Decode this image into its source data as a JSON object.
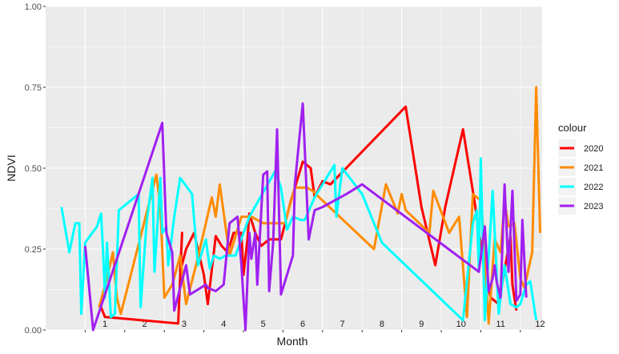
{
  "chart_data": {
    "type": "line",
    "xlabel": "Month",
    "ylabel": "NDVI",
    "ylim": [
      0,
      1
    ],
    "y_ticks": [
      "0.00",
      "0.25",
      "0.50",
      "0.75",
      "1.00"
    ],
    "y_tick_values": [
      0,
      0.25,
      0.5,
      0.75,
      1.0
    ],
    "categories": [
      "1",
      "2",
      "3",
      "4",
      "5",
      "6",
      "7",
      "8",
      "9",
      "10",
      "11",
      "12"
    ],
    "grid": true,
    "legend": {
      "title": "colour",
      "position": "right"
    },
    "series": [
      {
        "name": "2020",
        "color": "#ff0000",
        "points": [
          [
            1.4,
            0.07
          ],
          [
            1.5,
            0.04
          ],
          [
            3.35,
            0.02
          ],
          [
            3.45,
            0.3
          ],
          [
            3.4,
            0.18
          ],
          [
            3.55,
            0.25
          ],
          [
            3.75,
            0.3
          ],
          [
            4.0,
            0.17
          ],
          [
            4.1,
            0.08
          ],
          [
            4.3,
            0.29
          ],
          [
            4.45,
            0.26
          ],
          [
            4.6,
            0.24
          ],
          [
            4.75,
            0.3
          ],
          [
            4.95,
            0.3
          ],
          [
            5.0,
            0.17
          ],
          [
            5.1,
            0.28
          ],
          [
            5.15,
            0.36
          ],
          [
            5.3,
            0.3
          ],
          [
            5.45,
            0.26
          ],
          [
            5.65,
            0.28
          ],
          [
            5.95,
            0.28
          ],
          [
            6.2,
            0.4
          ],
          [
            6.5,
            0.52
          ],
          [
            6.7,
            0.5
          ],
          [
            6.8,
            0.41
          ],
          [
            7.0,
            0.46
          ],
          [
            7.2,
            0.45
          ],
          [
            9.1,
            0.69
          ],
          [
            9.5,
            0.38
          ],
          [
            9.85,
            0.2
          ],
          [
            10.1,
            0.38
          ],
          [
            10.55,
            0.62
          ],
          [
            10.85,
            0.39
          ],
          [
            11.1,
            0.18
          ],
          [
            11.25,
            0.1
          ],
          [
            11.45,
            0.08
          ],
          [
            11.75,
            0.29
          ],
          [
            11.8,
            0.14
          ],
          [
            11.9,
            0.06
          ]
        ]
      },
      {
        "name": "2021",
        "color": "#ff8c00",
        "points": [
          [
            1.35,
            0.07
          ],
          [
            1.55,
            0.16
          ],
          [
            1.7,
            0.24
          ],
          [
            1.8,
            0.1
          ],
          [
            1.9,
            0.05
          ],
          [
            2.8,
            0.48
          ],
          [
            2.9,
            0.38
          ],
          [
            3.0,
            0.1
          ],
          [
            3.2,
            0.14
          ],
          [
            3.4,
            0.23
          ],
          [
            3.55,
            0.08
          ],
          [
            3.8,
            0.2
          ],
          [
            4.05,
            0.33
          ],
          [
            4.2,
            0.41
          ],
          [
            4.3,
            0.35
          ],
          [
            4.4,
            0.45
          ],
          [
            4.65,
            0.23
          ],
          [
            4.95,
            0.35
          ],
          [
            5.1,
            0.35
          ],
          [
            5.2,
            0.35
          ],
          [
            5.5,
            0.33
          ],
          [
            6.0,
            0.33
          ],
          [
            6.05,
            0.33
          ],
          [
            6.3,
            0.44
          ],
          [
            6.6,
            0.44
          ],
          [
            6.75,
            0.43
          ],
          [
            7.0,
            0.4
          ],
          [
            8.3,
            0.25
          ],
          [
            8.6,
            0.45
          ],
          [
            8.9,
            0.36
          ],
          [
            9.0,
            0.42
          ],
          [
            9.1,
            0.37
          ],
          [
            9.7,
            0.3
          ],
          [
            9.8,
            0.43
          ],
          [
            10.2,
            0.3
          ],
          [
            10.45,
            0.35
          ],
          [
            10.65,
            0.04
          ],
          [
            10.8,
            0.42
          ],
          [
            11.0,
            0.4
          ],
          [
            11.05,
            0.33
          ],
          [
            11.2,
            0.02
          ],
          [
            11.35,
            0.28
          ],
          [
            11.5,
            0.24
          ],
          [
            11.6,
            0.4
          ],
          [
            11.7,
            0.32
          ],
          [
            11.85,
            0.33
          ],
          [
            12.0,
            0.16
          ],
          [
            12.1,
            0.13
          ],
          [
            12.3,
            0.24
          ],
          [
            12.4,
            0.75
          ],
          [
            12.5,
            0.3
          ]
        ]
      },
      {
        "name": "2022",
        "color": "#00ffff",
        "points": [
          [
            0.4,
            0.38
          ],
          [
            0.6,
            0.24
          ],
          [
            0.75,
            0.33
          ],
          [
            0.85,
            0.33
          ],
          [
            0.9,
            0.05
          ],
          [
            1.0,
            0.27
          ],
          [
            1.3,
            0.32
          ],
          [
            1.4,
            0.36
          ],
          [
            1.45,
            0.25
          ],
          [
            1.5,
            0.1
          ],
          [
            1.55,
            0.27
          ],
          [
            1.65,
            0.04
          ],
          [
            1.75,
            0.05
          ],
          [
            1.85,
            0.37
          ],
          [
            2.35,
            0.42
          ],
          [
            2.4,
            0.07
          ],
          [
            2.55,
            0.33
          ],
          [
            2.7,
            0.47
          ],
          [
            2.75,
            0.18
          ],
          [
            2.9,
            0.47
          ],
          [
            2.95,
            0.3
          ],
          [
            3.05,
            0.32
          ],
          [
            3.1,
            0.2
          ],
          [
            3.25,
            0.35
          ],
          [
            3.4,
            0.47
          ],
          [
            3.7,
            0.42
          ],
          [
            3.85,
            0.2
          ],
          [
            4.05,
            0.28
          ],
          [
            4.15,
            0.19
          ],
          [
            4.25,
            0.23
          ],
          [
            4.4,
            0.22
          ],
          [
            4.55,
            0.23
          ],
          [
            4.8,
            0.23
          ],
          [
            5.15,
            0.35
          ],
          [
            5.8,
            0.49
          ],
          [
            5.95,
            0.44
          ],
          [
            6.1,
            0.31
          ],
          [
            6.25,
            0.35
          ],
          [
            6.45,
            0.34
          ],
          [
            6.55,
            0.34
          ],
          [
            6.8,
            0.41
          ],
          [
            7.3,
            0.51
          ],
          [
            7.35,
            0.35
          ],
          [
            7.5,
            0.5
          ],
          [
            8.0,
            0.42
          ],
          [
            8.5,
            0.27
          ],
          [
            10.55,
            0.03
          ],
          [
            10.8,
            0.33
          ],
          [
            10.9,
            0.37
          ],
          [
            10.95,
            0.18
          ],
          [
            11.0,
            0.53
          ],
          [
            11.1,
            0.03
          ],
          [
            11.3,
            0.43
          ],
          [
            11.45,
            0.05
          ],
          [
            11.6,
            0.2
          ],
          [
            11.75,
            0.08
          ],
          [
            11.9,
            0.07
          ],
          [
            12.0,
            0.08
          ],
          [
            12.15,
            0.14
          ],
          [
            12.25,
            0.15
          ],
          [
            12.4,
            0.03
          ]
        ]
      },
      {
        "name": "2023",
        "color": "#a020f0",
        "points": [
          [
            1.0,
            0.26
          ],
          [
            1.2,
            0.0
          ],
          [
            2.95,
            0.64
          ],
          [
            3.05,
            0.3
          ],
          [
            3.2,
            0.24
          ],
          [
            3.25,
            0.06
          ],
          [
            3.55,
            0.2
          ],
          [
            3.65,
            0.11
          ],
          [
            4.05,
            0.14
          ],
          [
            4.1,
            0.13
          ],
          [
            4.3,
            0.12
          ],
          [
            4.5,
            0.14
          ],
          [
            4.65,
            0.33
          ],
          [
            4.85,
            0.35
          ],
          [
            4.95,
            0.2
          ],
          [
            5.05,
            0.0
          ],
          [
            5.15,
            0.3
          ],
          [
            5.2,
            0.22
          ],
          [
            5.3,
            0.3
          ],
          [
            5.35,
            0.14
          ],
          [
            5.5,
            0.48
          ],
          [
            5.6,
            0.49
          ],
          [
            5.65,
            0.12
          ],
          [
            5.75,
            0.27
          ],
          [
            5.85,
            0.62
          ],
          [
            5.95,
            0.11
          ],
          [
            6.25,
            0.23
          ],
          [
            6.3,
            0.45
          ],
          [
            6.5,
            0.7
          ],
          [
            6.65,
            0.28
          ],
          [
            6.8,
            0.37
          ],
          [
            7.0,
            0.38
          ],
          [
            7.6,
            0.42
          ],
          [
            8.0,
            0.45
          ],
          [
            10.95,
            0.18
          ],
          [
            11.1,
            0.32
          ],
          [
            11.2,
            0.12
          ],
          [
            11.3,
            0.16
          ],
          [
            11.35,
            0.2
          ],
          [
            11.4,
            0.15
          ],
          [
            11.5,
            0.1
          ],
          [
            11.6,
            0.45
          ],
          [
            11.7,
            0.18
          ],
          [
            11.8,
            0.43
          ],
          [
            11.9,
            0.09
          ],
          [
            12.0,
            0.11
          ],
          [
            12.05,
            0.34
          ],
          [
            12.15,
            0.1
          ]
        ]
      }
    ]
  }
}
